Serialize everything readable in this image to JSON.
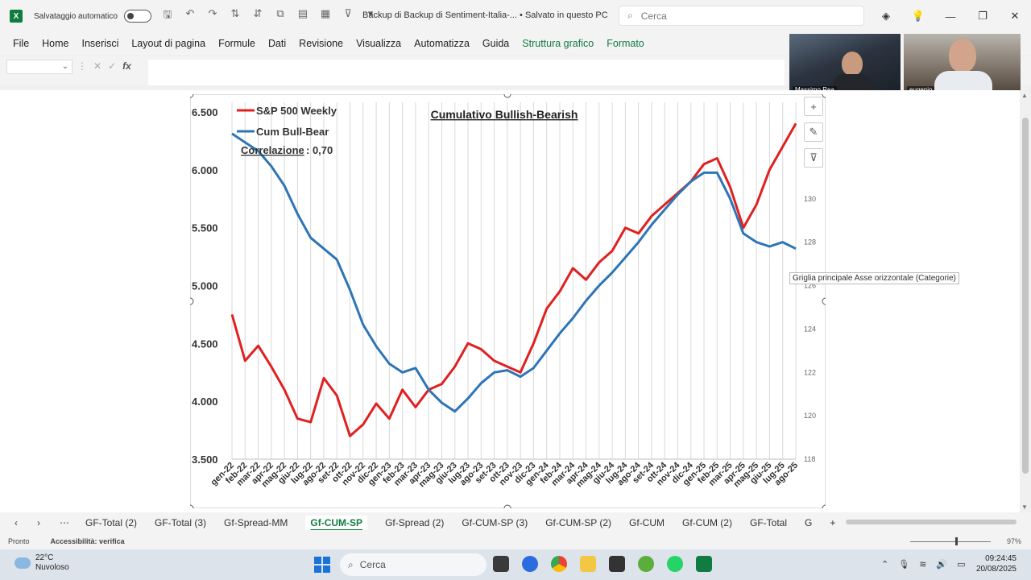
{
  "window": {
    "autosave_label": "Salvataggio automatico",
    "doc_title": "Backup di Backup di Sentiment-Italia-... • Salvato in questo PC",
    "search_placeholder": "Cerca"
  },
  "menu": {
    "items": [
      "File",
      "Home",
      "Inserisci",
      "Layout di pagina",
      "Formule",
      "Dati",
      "Revisione",
      "Visualizza",
      "Automatizza",
      "Guida"
    ],
    "context_items": [
      "Struttura grafico",
      "Formato"
    ]
  },
  "formula_bar": {
    "fx_label": "fx"
  },
  "video": {
    "participant1": "Massimo Rea",
    "participant2": "eugenio"
  },
  "tooltip": "Griglia principale Asse orizzontale (Categorie)",
  "sheets": {
    "tabs": [
      "GF-Total (2)",
      "GF-Total (3)",
      "Gf-Spread-MM",
      "Gf-CUM-SP",
      "Gf-Spread (2)",
      "Gf-CUM-SP (3)",
      "Gf-CUM-SP (2)",
      "Gf-CUM",
      "Gf-CUM (2)",
      "GF-Total",
      "G"
    ],
    "active": "Gf-CUM-SP"
  },
  "status": {
    "ready": "Pronto",
    "accessibility": "Accessibilità: verifica",
    "zoom": "97%"
  },
  "taskbar": {
    "temp": "22°C",
    "weather": "Nuvoloso",
    "search": "Cerca",
    "time": "09:24:45",
    "date": "20/08/2025"
  },
  "colors": {
    "sp500": "#e02020",
    "cum": "#2e75b6",
    "excel_green": "#107c41"
  },
  "chart_data": {
    "type": "line",
    "title": "Cumulativo Bullish-Bearish",
    "correlation_label": "Correlazione",
    "correlation_value": ": 0,70",
    "legend": [
      "S&P 500 Weekly",
      "Cum Bull-Bear"
    ],
    "legend_position": "top-left",
    "grid": "vertical",
    "y_left": {
      "ticks": [
        "6.500",
        "6.000",
        "5.500",
        "5.000",
        "4.500",
        "4.000",
        "3.500"
      ],
      "range": [
        3500,
        6500
      ]
    },
    "y_right": {
      "ticks": [
        "130",
        "128",
        "126",
        "124",
        "122",
        "120",
        "118"
      ],
      "range": [
        118,
        134
      ]
    },
    "x_labels": [
      "gen-22",
      "feb-22",
      "mar-22",
      "apr-22",
      "mag-22",
      "giu-22",
      "lug-22",
      "ago-22",
      "set-22",
      "ott-22",
      "nov-22",
      "dic-22",
      "gen-23",
      "feb-23",
      "mar-23",
      "apr-23",
      "mag-23",
      "giu-23",
      "lug-23",
      "ago-23",
      "set-23",
      "ott-23",
      "nov-23",
      "dic-23",
      "gen-24",
      "feb-24",
      "mar-24",
      "apr-24",
      "mag-24",
      "giu-24",
      "lug-24",
      "ago-24",
      "set-24",
      "ott-24",
      "nov-24",
      "dic-24",
      "gen-25",
      "feb-25",
      "mar-25",
      "apr-25",
      "mag-25",
      "giu-25",
      "lug-25",
      "ago-25"
    ],
    "series": [
      {
        "name": "S&P 500 Weekly",
        "axis": "left",
        "values": [
          4750,
          4350,
          4480,
          4300,
          4100,
          3850,
          3820,
          4200,
          4050,
          3700,
          3800,
          3980,
          3850,
          4100,
          3950,
          4100,
          4150,
          4300,
          4500,
          4450,
          4350,
          4300,
          4250,
          4500,
          4800,
          4950,
          5150,
          5050,
          5200,
          5300,
          5500,
          5450,
          5600,
          5700,
          5800,
          5900,
          6050,
          6100,
          5850,
          5500,
          5700,
          6000,
          6200,
          6400
        ]
      },
      {
        "name": "Cum Bull-Bear",
        "axis": "right",
        "values": [
          133.0,
          132.6,
          132.2,
          131.5,
          130.6,
          129.3,
          128.2,
          127.7,
          127.2,
          125.8,
          124.2,
          123.2,
          122.4,
          122.0,
          122.2,
          121.2,
          120.6,
          120.2,
          120.8,
          121.5,
          122.0,
          122.1,
          121.8,
          122.2,
          123.0,
          123.8,
          124.5,
          125.3,
          126.0,
          126.6,
          127.3,
          128.0,
          128.8,
          129.5,
          130.2,
          130.8,
          131.2,
          131.2,
          130.0,
          128.4,
          128.0,
          127.8,
          128.0,
          127.7
        ]
      }
    ]
  }
}
